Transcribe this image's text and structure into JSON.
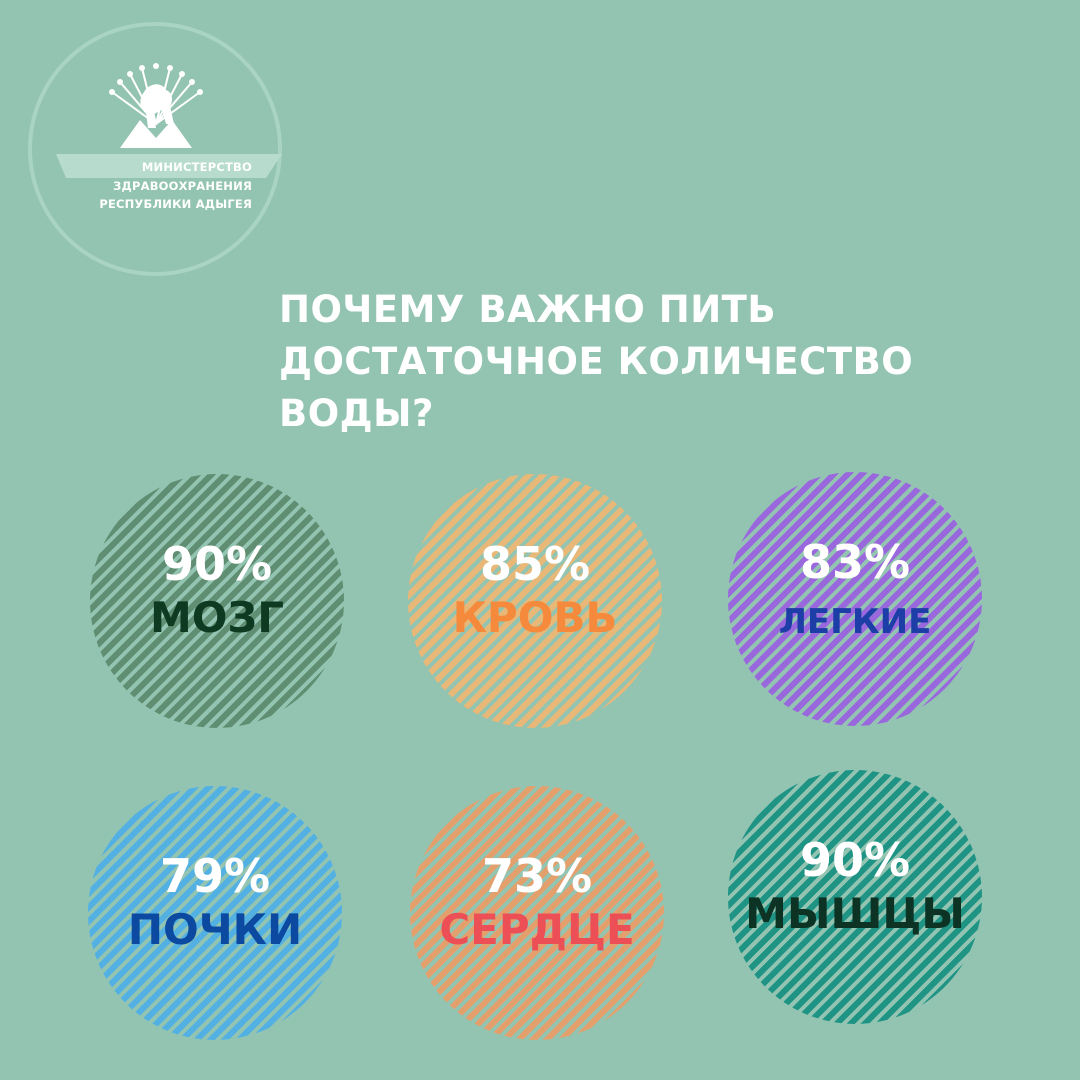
{
  "logo": {
    "lines": [
      "МИНИСТЕРСТВО",
      "ЗДРАВООХРАНЕНИЯ",
      "РЕСПУБЛИКИ АДЫГЕЯ"
    ]
  },
  "headline": {
    "lines": [
      "ПОЧЕМУ ВАЖНО ПИТЬ",
      "ДОСТАТОЧНОЕ КОЛИЧЕСТВО",
      "ВОДЫ?"
    ]
  },
  "stats": [
    {
      "percent": "90%",
      "organ": "МОЗГ",
      "circle_color": "#5f8e72",
      "label_color": "#0f3a22"
    },
    {
      "percent": "85%",
      "organ": "КРОВЬ",
      "circle_color": "#e7b877",
      "label_color": "#f58a3c"
    },
    {
      "percent": "83%",
      "organ": "ЛЕГКИЕ",
      "circle_color": "#9a68dd",
      "label_color": "#1c3ea6"
    },
    {
      "percent": "79%",
      "organ": "ПОЧКИ",
      "circle_color": "#52b1e2",
      "label_color": "#0b4aa0"
    },
    {
      "percent": "73%",
      "organ": "СЕРДЦЕ",
      "circle_color": "#e4a06c",
      "label_color": "#ec4f56"
    },
    {
      "percent": "90%",
      "organ": "МЫШЦЫ",
      "circle_color": "#1f9485",
      "label_color": "#0d3325"
    }
  ]
}
